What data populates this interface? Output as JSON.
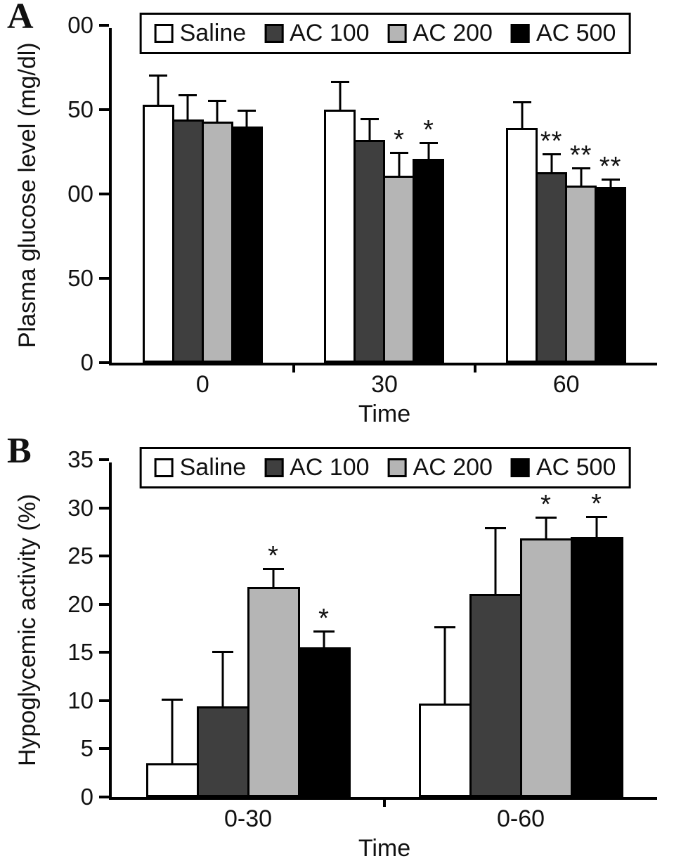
{
  "chart_data": [
    {
      "type": "bar",
      "panel_label": "A",
      "ylabel": "Plasma glucose level (mg/dl)",
      "xlabel": "Time",
      "ylim": [
        0,
        200
      ],
      "grid": false,
      "legend_position": "top",
      "yticks": [
        {
          "value": 0,
          "label": "0"
        },
        {
          "value": 50,
          "label": "50"
        },
        {
          "value": 100,
          "label": "00"
        },
        {
          "value": 150,
          "label": "50"
        },
        {
          "value": 200,
          "label": "00"
        }
      ],
      "categories": [
        "0",
        "30",
        "60"
      ],
      "series": [
        {
          "name": "Saline",
          "color": "#ffffff",
          "values": [
            153,
            150,
            139
          ],
          "errors": [
            18,
            17,
            16
          ],
          "significance": [
            "",
            "",
            ""
          ]
        },
        {
          "name": "AC 100",
          "color": "#3f3f3f",
          "values": [
            144,
            132,
            113
          ],
          "errors": [
            15,
            13,
            11
          ],
          "significance": [
            "",
            "",
            "**"
          ]
        },
        {
          "name": "AC 200",
          "color": "#b5b5b5",
          "values": [
            143,
            111,
            105
          ],
          "errors": [
            13,
            14,
            11
          ],
          "significance": [
            "",
            "*",
            "**"
          ]
        },
        {
          "name": "AC 500",
          "color": "#000000",
          "values": [
            140,
            121,
            104
          ],
          "errors": [
            10,
            10,
            5
          ],
          "significance": [
            "",
            "*",
            "**"
          ]
        }
      ]
    },
    {
      "type": "bar",
      "panel_label": "B",
      "ylabel": "Hypoglycemic activity (%)",
      "xlabel": "Time",
      "ylim": [
        0,
        35
      ],
      "grid": false,
      "legend_position": "top",
      "yticks": [
        {
          "value": 0,
          "label": "0"
        },
        {
          "value": 5,
          "label": "5"
        },
        {
          "value": 10,
          "label": "10"
        },
        {
          "value": 15,
          "label": "15"
        },
        {
          "value": 20,
          "label": "20"
        },
        {
          "value": 25,
          "label": "25"
        },
        {
          "value": 30,
          "label": "30"
        },
        {
          "value": 35,
          "label": "35"
        }
      ],
      "categories": [
        "0-30",
        "0-60"
      ],
      "series": [
        {
          "name": "Saline",
          "color": "#ffffff",
          "values": [
            3.5,
            9.7
          ],
          "errors": [
            6.7,
            8.0
          ],
          "significance": [
            "",
            ""
          ]
        },
        {
          "name": "AC 100",
          "color": "#3f3f3f",
          "values": [
            9.4,
            21.1
          ],
          "errors": [
            5.8,
            6.9
          ],
          "significance": [
            "",
            ""
          ]
        },
        {
          "name": "AC 200",
          "color": "#b5b5b5",
          "values": [
            21.8,
            26.8
          ],
          "errors": [
            2.0,
            2.3
          ],
          "significance": [
            "*",
            "*"
          ]
        },
        {
          "name": "AC 500",
          "color": "#000000",
          "values": [
            15.5,
            27.0
          ],
          "errors": [
            1.8,
            2.2
          ],
          "significance": [
            "*",
            "*"
          ]
        }
      ]
    }
  ]
}
